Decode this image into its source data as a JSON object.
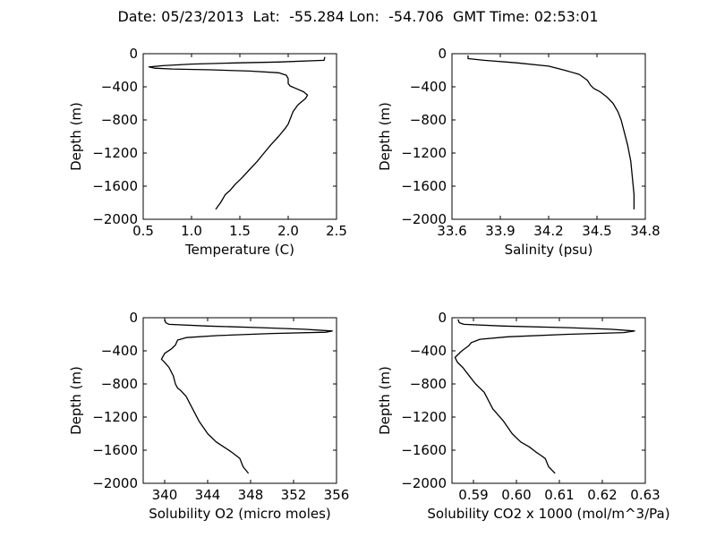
{
  "figure": {
    "title": "Date: 05/23/2013  Lat:  -55.284 Lon:  -54.706  GMT Time: 02:53:01"
  },
  "chart_data": [
    {
      "type": "line",
      "title": "",
      "xlabel": "Temperature (C)",
      "ylabel": "Depth (m)",
      "xlim": [
        0.5,
        2.5
      ],
      "ylim": [
        -2000,
        0
      ],
      "xticks": [
        0.5,
        1.0,
        1.5,
        2.0,
        2.5
      ],
      "xtick_labels": [
        "0.5",
        "1.0",
        "1.5",
        "2.0",
        "2.5"
      ],
      "yticks": [
        0,
        -400,
        -800,
        -1200,
        -1600,
        -2000
      ],
      "ytick_labels": [
        "0",
        "−400",
        "−800",
        "−1200",
        "−1600",
        "−2000"
      ],
      "grid": false,
      "series": [
        {
          "x": [
            2.38,
            2.37,
            1.9,
            1.5,
            1.0,
            0.7,
            0.56,
            0.62,
            0.8,
            1.2,
            1.6,
            1.9,
            1.98,
            2.0,
            2.0,
            2.02,
            2.08,
            2.16,
            2.2,
            2.18,
            2.1,
            2.05,
            2.0,
            1.97,
            1.9,
            1.82,
            1.75,
            1.68,
            1.6,
            1.52,
            1.45,
            1.4,
            1.35,
            1.3,
            1.25
          ],
          "y": [
            -40,
            -80,
            -100,
            -110,
            -125,
            -145,
            -160,
            -175,
            -185,
            -195,
            -210,
            -230,
            -260,
            -300,
            -360,
            -390,
            -420,
            -460,
            -500,
            -540,
            -620,
            -700,
            -850,
            -900,
            -1000,
            -1100,
            -1200,
            -1300,
            -1400,
            -1500,
            -1580,
            -1650,
            -1700,
            -1800,
            -1880
          ]
        }
      ]
    },
    {
      "type": "line",
      "title": "",
      "xlabel": "Salinity (psu)",
      "ylabel": "Depth (m)",
      "xlim": [
        33.6,
        34.8
      ],
      "ylim": [
        -2000,
        0
      ],
      "xticks": [
        33.6,
        33.9,
        34.2,
        34.5,
        34.8
      ],
      "xtick_labels": [
        "33.6",
        "33.9",
        "34.2",
        "34.5",
        "34.8"
      ],
      "yticks": [
        0,
        -400,
        -800,
        -1200,
        -1600,
        -2000
      ],
      "ytick_labels": [
        "0",
        "−400",
        "−800",
        "−1200",
        "−1600",
        "−2000"
      ],
      "grid": false,
      "series": [
        {
          "x": [
            33.7,
            33.7,
            33.8,
            34.0,
            34.2,
            34.3,
            34.39,
            34.44,
            34.46,
            34.48,
            34.52,
            34.56,
            34.6,
            34.63,
            34.65,
            34.67,
            34.69,
            34.7,
            34.71,
            34.72,
            34.73,
            34.73
          ],
          "y": [
            -20,
            -60,
            -80,
            -110,
            -150,
            -200,
            -250,
            -320,
            -380,
            -420,
            -460,
            -520,
            -600,
            -700,
            -800,
            -950,
            -1100,
            -1200,
            -1300,
            -1500,
            -1700,
            -1880
          ]
        }
      ]
    },
    {
      "type": "line",
      "title": "",
      "xlabel": "Solubility O2 (micro moles)",
      "ylabel": "Depth (m)",
      "xlim": [
        338,
        356
      ],
      "ylim": [
        -2000,
        0
      ],
      "xticks": [
        340,
        344,
        348,
        352,
        356
      ],
      "xtick_labels": [
        "340",
        "344",
        "348",
        "352",
        "356"
      ],
      "yticks": [
        0,
        -400,
        -800,
        -1200,
        -1600,
        -2000
      ],
      "ytick_labels": [
        "0",
        "−400",
        "−800",
        "−1200",
        "−1600",
        "−2000"
      ],
      "grid": false,
      "series": [
        {
          "x": [
            340.0,
            340.1,
            340.4,
            344.0,
            349.0,
            353.0,
            355.6,
            355.0,
            350.0,
            345.0,
            342.0,
            341.2,
            341.0,
            340.6,
            340.0,
            339.7,
            340.0,
            340.4,
            340.8,
            341.0,
            341.2,
            341.5,
            342.0,
            342.6,
            343.2,
            344.0,
            344.8,
            345.5,
            346.2,
            346.6,
            347.0,
            347.3,
            347.8
          ],
          "y": [
            -20,
            -60,
            -80,
            -100,
            -120,
            -140,
            -160,
            -175,
            -190,
            -215,
            -240,
            -270,
            -330,
            -380,
            -430,
            -500,
            -540,
            -600,
            -700,
            -800,
            -850,
            -880,
            -950,
            -1100,
            -1250,
            -1400,
            -1500,
            -1560,
            -1620,
            -1660,
            -1700,
            -1800,
            -1880
          ]
        }
      ]
    },
    {
      "type": "line",
      "title": "",
      "xlabel": "Solubility CO2 x 1000 (mol/m^3/Pa)",
      "ylabel": "Depth (m)",
      "xlim": [
        0.585,
        0.63
      ],
      "ylim": [
        -2000,
        0
      ],
      "xticks": [
        0.59,
        0.6,
        0.61,
        0.62,
        0.63
      ],
      "xtick_labels": [
        "0.59",
        "0.60",
        "0.61",
        "0.62",
        "0.63"
      ],
      "yticks": [
        0,
        -400,
        -800,
        -1200,
        -1600,
        -2000
      ],
      "ytick_labels": [
        "0",
        "−400",
        "−800",
        "−1200",
        "−1600",
        "−2000"
      ],
      "grid": false,
      "series": [
        {
          "x": [
            0.5864,
            0.5867,
            0.5878,
            0.597,
            0.612,
            0.622,
            0.6275,
            0.625,
            0.612,
            0.598,
            0.5915,
            0.5895,
            0.5889,
            0.5873,
            0.5857,
            0.5863,
            0.5875,
            0.589,
            0.5905,
            0.5925,
            0.5945,
            0.597,
            0.599,
            0.601,
            0.603,
            0.6045,
            0.6056,
            0.6067,
            0.6075,
            0.609
          ],
          "y": [
            -20,
            -60,
            -80,
            -100,
            -120,
            -140,
            -160,
            -180,
            -200,
            -230,
            -260,
            -300,
            -340,
            -400,
            -480,
            -540,
            -600,
            -700,
            -800,
            -900,
            -1100,
            -1250,
            -1400,
            -1500,
            -1560,
            -1620,
            -1660,
            -1700,
            -1800,
            -1880
          ]
        }
      ]
    }
  ]
}
